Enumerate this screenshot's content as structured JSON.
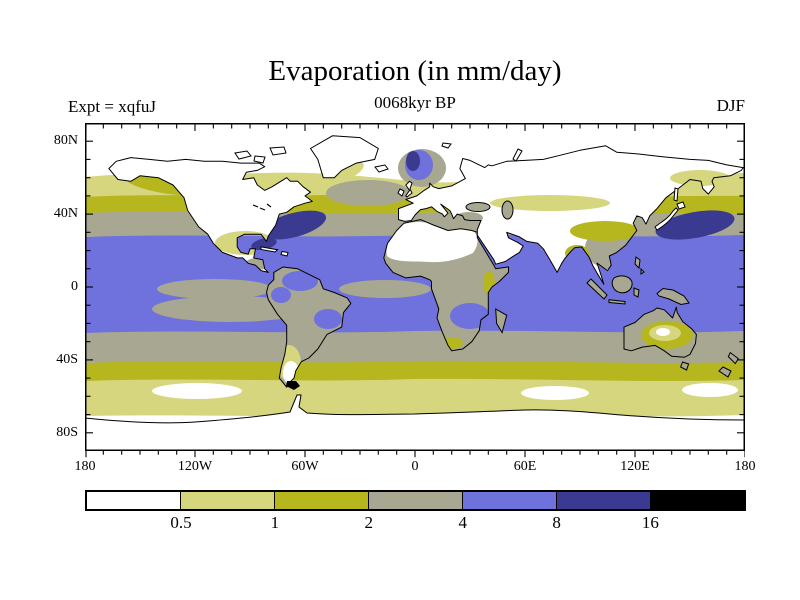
{
  "figure": {
    "title": "Evaporation (in mm/day)",
    "subtitle": "0068kyr BP",
    "experiment_label": "Expt = xqfuJ",
    "season_label": "DJF"
  },
  "axes": {
    "lat_tick_labels": [
      "80N",
      "40N",
      "0",
      "40S",
      "80S"
    ],
    "lon_tick_labels": [
      "180",
      "120W",
      "60W",
      "0",
      "60E",
      "120E",
      "180"
    ]
  },
  "colorbar": {
    "tick_labels": [
      "0.5",
      "1",
      "2",
      "4",
      "8",
      "16"
    ],
    "segments": [
      {
        "range": "< 0.5",
        "color": "#ffffff"
      },
      {
        "range": "0.5 - 1",
        "color": "#d6d67e"
      },
      {
        "range": "1 - 2",
        "color": "#b6b61e"
      },
      {
        "range": "2 - 4",
        "color": "#a7a792"
      },
      {
        "range": "4 - 8",
        "color": "#6f71dc"
      },
      {
        "range": "8 - 16",
        "color": "#3a3b90"
      },
      {
        "range": "> 16",
        "color": "#000000"
      }
    ]
  },
  "chart_data": {
    "type": "heatmap",
    "subtype": "filled_contour_world_map",
    "title": "Evaporation (in mm/day)",
    "variable": "evaporation",
    "units": "mm/day",
    "experiment_id": "xqfuJ",
    "time_label": "0068kyr BP",
    "season": "DJF",
    "projection": "equirectangular",
    "lon_range": [
      -180,
      180
    ],
    "lat_range": [
      -90,
      90
    ],
    "contour_levels": [
      0.5,
      1,
      2,
      4,
      8,
      16
    ],
    "palette": [
      "#ffffff",
      "#d6d67e",
      "#b6b61e",
      "#a7a792",
      "#6f71dc",
      "#3a3b90",
      "#000000"
    ],
    "coastline_color": "#000000",
    "zonal_pattern": [
      {
        "lat_band": "90N-62N",
        "value_mm_day": "< 0.5"
      },
      {
        "lat_band": "62N-50N oceans",
        "value_mm_day": "0.5-1"
      },
      {
        "lat_band": "50N-41N oceans",
        "value_mm_day": "1-2"
      },
      {
        "lat_band": "41N-28N oceans",
        "value_mm_day": "2-4"
      },
      {
        "lat_band": "28N-26S tropical oceans",
        "value_mm_day": "4-8"
      },
      {
        "lat_band": "equatorial east Pacific and Atlantic cold tongues",
        "value_mm_day": "2-4"
      },
      {
        "lat_band": "26S-41S",
        "value_mm_day": "2-4"
      },
      {
        "lat_band": "41S-51S",
        "value_mm_day": "1-2"
      },
      {
        "lat_band": "51S-68S",
        "value_mm_day": "0.5-1"
      },
      {
        "lat_band": "68S-90S (Antarctica)",
        "value_mm_day": "< 0.5"
      }
    ],
    "notable_features": [
      "8-16 mm/day maxima off the US east coast (Gulf Stream) and east of Japan (Kuroshio), plus a small patch near Florida/Caribbean and the Norwegian Sea",
      "Northern-hemisphere continents, Greenland, Sahara and Arabia below 0.5 (white) in DJF",
      "Tropical land (South America, sub-Saharan Africa, Maritime Continent, Australia rim) mostly 2-4 with 4-8 patches over Amazonia and southeast Africa",
      "Central Australia and Patagonia below 1",
      "1-2 (olive) circumpolar band near 45S and across the North Pacific and North Atlantic near 45N"
    ]
  }
}
